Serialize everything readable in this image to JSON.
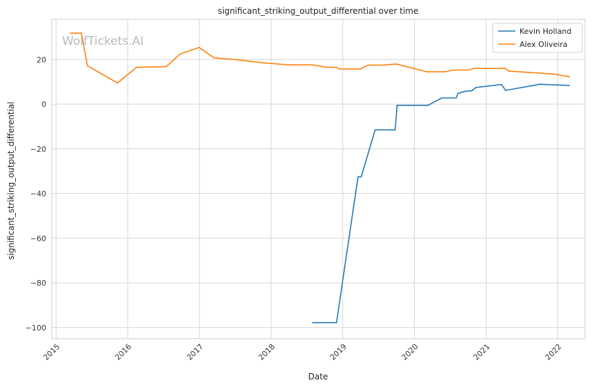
{
  "chart_data": {
    "type": "line",
    "title": "significant_striking_output_differential over time",
    "xlabel": "Date",
    "ylabel": "significant_striking_output_differential",
    "watermark": "WolfTickets.AI",
    "x_axis": "date",
    "xlim": [
      "2014-12-10",
      "2022-05-20"
    ],
    "ylim": [
      -105,
      38
    ],
    "x_ticks": [
      "2015",
      "2016",
      "2017",
      "2018",
      "2019",
      "2020",
      "2021",
      "2022"
    ],
    "y_ticks": [
      -100,
      -80,
      -60,
      -40,
      -20,
      0,
      20
    ],
    "grid": true,
    "legend_position": "top-right",
    "series": [
      {
        "name": "Kevin Holland",
        "color": "#1f77b4",
        "points": [
          [
            "2018-08-01",
            -97.8
          ],
          [
            "2018-11-30",
            -97.8
          ],
          [
            "2019-03-20",
            -32.5
          ],
          [
            "2019-04-05",
            -32.5
          ],
          [
            "2019-06-15",
            -11.5
          ],
          [
            "2019-09-25",
            -11.5
          ],
          [
            "2019-10-05",
            -0.5
          ],
          [
            "2020-03-10",
            -0.5
          ],
          [
            "2020-05-20",
            2.8
          ],
          [
            "2020-08-01",
            2.8
          ],
          [
            "2020-08-10",
            4.8
          ],
          [
            "2020-09-15",
            5.8
          ],
          [
            "2020-10-20",
            6.0
          ],
          [
            "2020-11-10",
            7.5
          ],
          [
            "2021-03-20",
            8.8
          ],
          [
            "2021-04-10",
            6.2
          ],
          [
            "2021-10-01",
            8.9
          ],
          [
            "2022-03-01",
            8.4
          ]
        ]
      },
      {
        "name": "Alex Oliveira",
        "color": "#ff7f0e",
        "points": [
          [
            "2015-03-15",
            31.8
          ],
          [
            "2015-05-10",
            31.8
          ],
          [
            "2015-06-10",
            17.2
          ],
          [
            "2015-11-10",
            9.5
          ],
          [
            "2016-02-15",
            16.5
          ],
          [
            "2016-07-15",
            16.8
          ],
          [
            "2016-09-25",
            22.5
          ],
          [
            "2016-12-30",
            25.4
          ],
          [
            "2017-03-15",
            20.8
          ],
          [
            "2017-07-20",
            19.8
          ],
          [
            "2017-11-20",
            18.5
          ],
          [
            "2018-04-01",
            17.6
          ],
          [
            "2018-08-01",
            17.6
          ],
          [
            "2018-10-10",
            16.5
          ],
          [
            "2018-11-30",
            16.5
          ],
          [
            "2018-12-15",
            15.8
          ],
          [
            "2019-04-01",
            15.8
          ],
          [
            "2019-05-10",
            17.5
          ],
          [
            "2019-07-20",
            17.5
          ],
          [
            "2019-10-01",
            18.0
          ],
          [
            "2020-03-05",
            14.5
          ],
          [
            "2020-06-01",
            14.5
          ],
          [
            "2020-07-20",
            15.3
          ],
          [
            "2020-10-01",
            15.3
          ],
          [
            "2020-11-01",
            16.0
          ],
          [
            "2021-04-10",
            16.0
          ],
          [
            "2021-04-25",
            14.8
          ],
          [
            "2021-08-15",
            14.2
          ],
          [
            "2021-12-10",
            13.5
          ],
          [
            "2022-03-01",
            12.3
          ]
        ]
      }
    ]
  }
}
